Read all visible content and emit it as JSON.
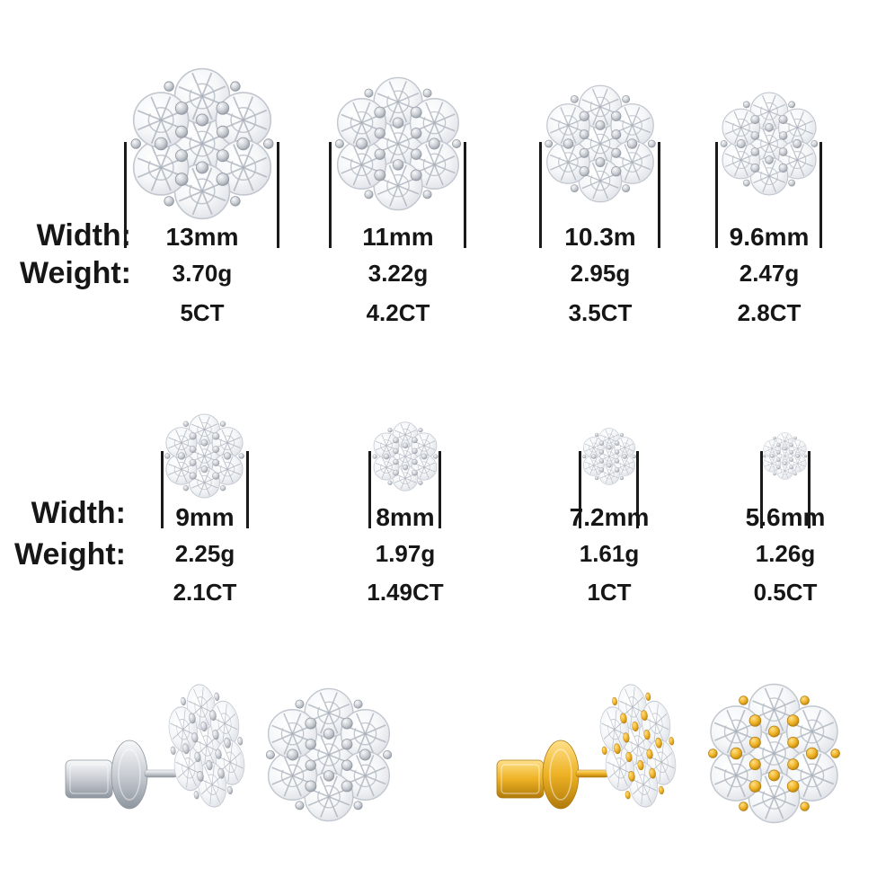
{
  "colors": {
    "text": "#161616",
    "measure_bar": "#1a1a1a",
    "stone_highlight": "#ffffff",
    "stone_shade": "#dcdfe5",
    "facet_line": "#a8afb9",
    "metals": {
      "silver": {
        "light": "#f8f9fa",
        "mid": "#c9cdd3",
        "dark": "#8e959e"
      },
      "gold": {
        "light": "#ffe08a",
        "mid": "#eeb224",
        "dark": "#b07a0c"
      }
    }
  },
  "spec_rows": [
    {
      "width_label": "Width:",
      "weight_label": "Weight:",
      "items": [
        {
          "width": "13mm",
          "weight": "3.70g",
          "carat": "5CT"
        },
        {
          "width": "11mm",
          "weight": "3.22g",
          "carat": "4.2CT"
        },
        {
          "width": "10.3m",
          "weight": "2.95g",
          "carat": "3.5CT"
        },
        {
          "width": "9.6mm",
          "weight": "2.47g",
          "carat": "2.8CT"
        }
      ]
    },
    {
      "width_label": "Width:",
      "weight_label": "Weight:",
      "items": [
        {
          "width": "9mm",
          "weight": "2.25g",
          "carat": "2.1CT"
        },
        {
          "width": "8mm",
          "weight": "1.97g",
          "carat": "1.49CT"
        },
        {
          "width": "7.2mm",
          "weight": "1.61g",
          "carat": "1CT"
        },
        {
          "width": "5.6mm",
          "weight": "1.26g",
          "carat": "0.5CT"
        }
      ]
    }
  ],
  "gallery": {
    "left_variant": "silver flower cluster stud pair (side view and front view)",
    "right_variant": "gold flower cluster stud pair (side view and front view)"
  }
}
